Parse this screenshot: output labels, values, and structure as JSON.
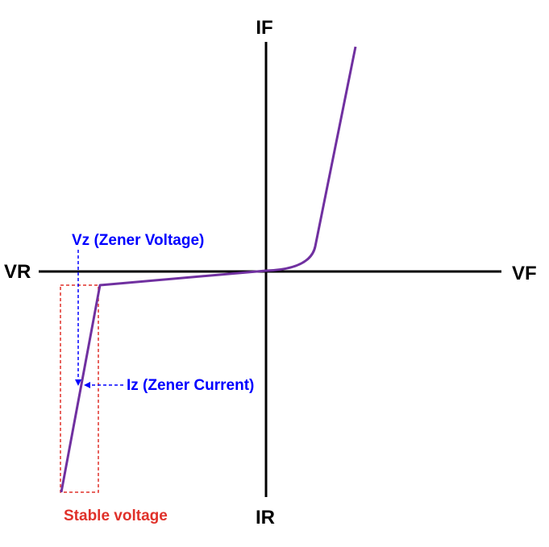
{
  "axes": {
    "top_label": "IF",
    "bottom_label": "IR",
    "left_label": "VR",
    "right_label": "VF"
  },
  "annotations": {
    "zener_voltage": "Vz (Zener Voltage)",
    "zener_current": "Iz (Zener Current)",
    "stable_voltage": "Stable voltage"
  },
  "colors": {
    "axis": "#000000",
    "curve": "#7030a0",
    "annotation_blue": "#0000ff",
    "stable_box": "#e0312a",
    "stable_text": "#e0312a"
  }
}
